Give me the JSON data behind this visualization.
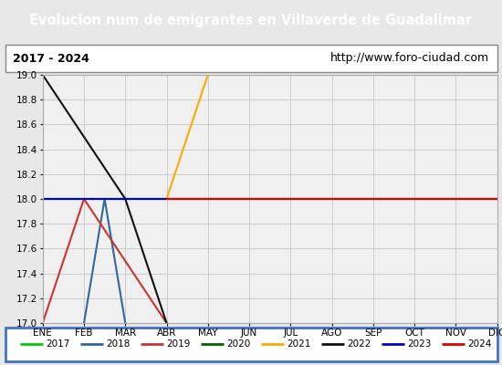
{
  "title": "Evolucion num de emigrantes en Villaverde de Guadalimar",
  "subtitle_left": "2017 - 2024",
  "subtitle_right": "http://www.foro-ciudad.com",
  "background_color": "#e8e8e8",
  "plot_bg_color": "#f0f0f0",
  "title_bg_color": "#5b8dd9",
  "title_color": "#ffffff",
  "ylim": [
    17.0,
    19.0
  ],
  "yticks": [
    17.0,
    17.2,
    17.4,
    17.6,
    17.8,
    18.0,
    18.2,
    18.4,
    18.6,
    18.8,
    19.0
  ],
  "months": [
    "ENE",
    "FEB",
    "MAR",
    "ABR",
    "MAY",
    "JUN",
    "JUL",
    "AGO",
    "SEP",
    "OCT",
    "NOV",
    "DIC"
  ],
  "series": [
    {
      "label": "2017",
      "color": "#00cc00",
      "linewidth": 1.5,
      "data": [
        [
          1,
          18
        ],
        [
          12,
          18
        ]
      ]
    },
    {
      "label": "2018",
      "color": "#336699",
      "linewidth": 1.5,
      "data": [
        [
          2,
          17
        ],
        [
          2.5,
          18
        ],
        [
          3,
          17
        ]
      ]
    },
    {
      "label": "2019",
      "color": "#cc3333",
      "linewidth": 1.5,
      "data": [
        [
          1,
          17
        ],
        [
          2,
          18
        ],
        [
          4,
          17
        ]
      ]
    },
    {
      "label": "2020",
      "color": "#006400",
      "linewidth": 1.5,
      "data": [
        [
          1,
          18
        ],
        [
          12,
          18
        ]
      ]
    },
    {
      "label": "2021",
      "color": "#ffaa00",
      "linewidth": 1.5,
      "data": [
        [
          4,
          18
        ],
        [
          5,
          19
        ],
        [
          12,
          19
        ]
      ]
    },
    {
      "label": "2022",
      "color": "#111111",
      "linewidth": 1.5,
      "data": [
        [
          1,
          19
        ],
        [
          3,
          18
        ],
        [
          4,
          17
        ]
      ]
    },
    {
      "label": "2023",
      "color": "#0000cc",
      "linewidth": 1.5,
      "data": [
        [
          1,
          18
        ],
        [
          12,
          18
        ]
      ]
    },
    {
      "label": "2024",
      "color": "#dd0000",
      "linewidth": 1.5,
      "data": [
        [
          4,
          18
        ],
        [
          12,
          18
        ]
      ]
    }
  ],
  "legend_items": [
    {
      "label": "2017",
      "color": "#00cc00"
    },
    {
      "label": "2018",
      "color": "#336699"
    },
    {
      "label": "2019",
      "color": "#cc3333"
    },
    {
      "label": "2020",
      "color": "#006400"
    },
    {
      "label": "2021",
      "color": "#ffaa00"
    },
    {
      "label": "2022",
      "color": "#111111"
    },
    {
      "label": "2023",
      "color": "#0000cc"
    },
    {
      "label": "2024",
      "color": "#dd0000"
    }
  ]
}
